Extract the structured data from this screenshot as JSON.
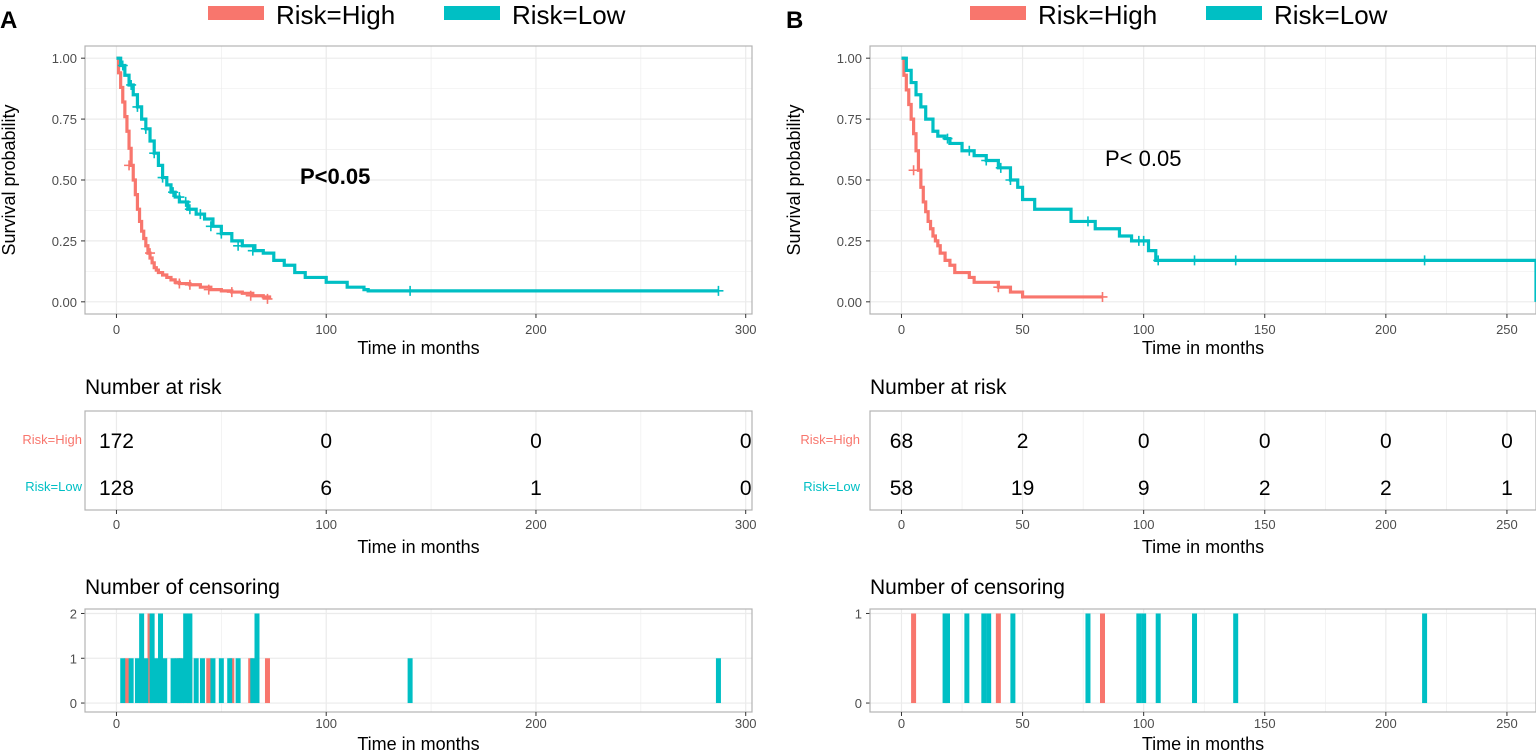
{
  "colors": {
    "high": "#F8766D",
    "low": "#00BFC4",
    "grid": "#EBEBEB",
    "border": "#B3B3B3",
    "text": "#000000",
    "tick": "#4D4D4D"
  },
  "chart_data": [
    {
      "panel_label": "A",
      "legend": {
        "high": "Risk=High",
        "low": "Risk=Low",
        "placement": "top"
      },
      "survival": {
        "type": "line",
        "step": true,
        "xlabel": "Time in months",
        "ylabel": "Survival probability",
        "xlim": [
          -15,
          303
        ],
        "ylim": [
          -0.05,
          1.05
        ],
        "xticks": [
          0,
          100,
          200,
          300
        ],
        "yticks": [
          0,
          0.25,
          0.5,
          0.75,
          1
        ],
        "ytick_labels": [
          "0.00",
          "0.25",
          "0.50",
          "0.75",
          "1.00"
        ],
        "pvalue": "P<0.05",
        "series": [
          {
            "name": "Risk=High",
            "color_key": "high",
            "x": [
              0,
              1,
              2,
              3,
              4,
              5,
              6,
              7,
              8,
              9,
              10,
              11,
              12,
              13,
              14,
              15,
              16,
              17,
              18,
              19,
              20,
              22,
              24,
              26,
              28,
              30,
              35,
              40,
              45,
              50,
              55,
              60,
              65,
              70,
              73
            ],
            "y": [
              1.0,
              0.94,
              0.88,
              0.82,
              0.76,
              0.7,
              0.63,
              0.56,
              0.5,
              0.44,
              0.38,
              0.33,
              0.29,
              0.26,
              0.23,
              0.2,
              0.18,
              0.16,
              0.14,
              0.13,
              0.12,
              0.11,
              0.1,
              0.09,
              0.08,
              0.075,
              0.07,
              0.06,
              0.05,
              0.045,
              0.04,
              0.035,
              0.025,
              0.02,
              0.012
            ],
            "censor_x": [
              6,
              16,
              30,
              35,
              44,
              55,
              64,
              72
            ],
            "censor_y": [
              0.56,
              0.2,
              0.075,
              0.07,
              0.05,
              0.04,
              0.025,
              0.012
            ]
          },
          {
            "name": "Risk=Low",
            "color_key": "low",
            "x": [
              0,
              2,
              4,
              6,
              8,
              10,
              12,
              14,
              16,
              18,
              20,
              22,
              24,
              26,
              28,
              30,
              34,
              38,
              42,
              46,
              50,
              55,
              60,
              66,
              70,
              75,
              80,
              85,
              90,
              100,
              110,
              118,
              120,
              140,
              200,
              287
            ],
            "y": [
              1.0,
              0.97,
              0.93,
              0.89,
              0.85,
              0.8,
              0.75,
              0.71,
              0.66,
              0.61,
              0.56,
              0.51,
              0.48,
              0.45,
              0.43,
              0.41,
              0.38,
              0.36,
              0.34,
              0.31,
              0.28,
              0.25,
              0.23,
              0.21,
              0.2,
              0.17,
              0.15,
              0.12,
              0.1,
              0.08,
              0.06,
              0.05,
              0.045,
              0.045,
              0.045,
              0.045
            ],
            "censor_x": [
              3,
              7,
              10,
              14,
              18,
              22,
              27,
              30,
              33,
              35,
              40,
              45,
              50,
              58,
              65,
              140,
              287
            ],
            "censor_y": [
              0.97,
              0.89,
              0.8,
              0.71,
              0.61,
              0.51,
              0.45,
              0.43,
              0.41,
              0.38,
              0.36,
              0.31,
              0.28,
              0.23,
              0.21,
              0.045,
              0.045
            ]
          }
        ]
      },
      "risk_table": {
        "title": "Number at risk",
        "xlabel": "Time in months",
        "xlim": [
          -15,
          303
        ],
        "xticks": [
          0,
          100,
          200,
          300
        ],
        "times": [
          0,
          100,
          200,
          300
        ],
        "rows": [
          {
            "label": "Risk=High",
            "color_key": "high",
            "values": [
              "172",
              "0",
              "0",
              "0"
            ]
          },
          {
            "label": "Risk=Low",
            "color_key": "low",
            "values": [
              "128",
              "6",
              "1",
              "0"
            ]
          }
        ]
      },
      "censoring": {
        "type": "bar",
        "title": "Number of censoring",
        "xlabel": "Time in months",
        "xlim": [
          -15,
          303
        ],
        "xticks": [
          0,
          100,
          200,
          300
        ],
        "ylim": [
          0,
          2
        ],
        "yticks": [
          0,
          1,
          2
        ],
        "series": [
          {
            "name": "Risk=High",
            "color_key": "high",
            "x": [
              5,
              16,
              30,
              35,
              44,
              55,
              64,
              72
            ],
            "values": [
              1,
              2,
              1,
              1,
              1,
              1,
              1,
              1
            ]
          },
          {
            "name": "Risk=Low",
            "color_key": "low",
            "x": [
              3,
              7,
              10,
              12,
              14,
              17,
              19,
              21,
              23,
              27,
              29,
              31,
              33,
              35,
              38,
              41,
              46,
              50,
              54,
              58,
              65,
              67,
              140,
              287
            ],
            "values": [
              1,
              1,
              1,
              2,
              1,
              2,
              1,
              2,
              1,
              1,
              1,
              1,
              2,
              2,
              1,
              1,
              1,
              1,
              1,
              1,
              1,
              2,
              1,
              1
            ]
          }
        ]
      }
    },
    {
      "panel_label": "B",
      "legend": {
        "high": "Risk=High",
        "low": "Risk=Low",
        "placement": "top"
      },
      "survival": {
        "type": "line",
        "step": true,
        "xlabel": "Time in months",
        "ylabel": "Survival probability",
        "xlim": [
          -13,
          262
        ],
        "ylim": [
          -0.05,
          1.05
        ],
        "xticks": [
          0,
          50,
          100,
          150,
          200,
          250
        ],
        "yticks": [
          0,
          0.25,
          0.5,
          0.75,
          1
        ],
        "ytick_labels": [
          "0.00",
          "0.25",
          "0.50",
          "0.75",
          "1.00"
        ],
        "pvalue": "P< 0.05",
        "series": [
          {
            "name": "Risk=High",
            "color_key": "high",
            "x": [
              0,
              1,
              2,
              3,
              4,
              5,
              6,
              7,
              8,
              9,
              10,
              11,
              12,
              13,
              14,
              15,
              16,
              18,
              20,
              22,
              25,
              28,
              30,
              35,
              40,
              45,
              50,
              83
            ],
            "y": [
              1.0,
              0.93,
              0.87,
              0.81,
              0.75,
              0.69,
              0.62,
              0.54,
              0.47,
              0.41,
              0.37,
              0.33,
              0.3,
              0.27,
              0.25,
              0.23,
              0.2,
              0.17,
              0.15,
              0.12,
              0.12,
              0.1,
              0.08,
              0.08,
              0.06,
              0.04,
              0.02,
              0.02
            ],
            "censor_x": [
              5,
              40,
              83
            ],
            "censor_y": [
              0.54,
              0.06,
              0.02
            ]
          },
          {
            "name": "Risk=Low",
            "color_key": "low",
            "x": [
              0,
              2,
              4,
              6,
              8,
              10,
              13,
              15,
              18,
              20,
              25,
              30,
              35,
              40,
              45,
              48,
              50,
              55,
              60,
              70,
              80,
              90,
              95,
              100,
              102,
              105,
              150,
              200,
              240,
              262
            ],
            "y": [
              1.0,
              0.95,
              0.9,
              0.85,
              0.8,
              0.75,
              0.7,
              0.68,
              0.67,
              0.65,
              0.62,
              0.6,
              0.58,
              0.55,
              0.5,
              0.47,
              0.42,
              0.38,
              0.38,
              0.33,
              0.3,
              0.27,
              0.25,
              0.25,
              0.21,
              0.17,
              0.17,
              0.17,
              0.17,
              0.0
            ],
            "censor_x": [
              19,
              28,
              35,
              41,
              45,
              77,
              98,
              100,
              106,
              121,
              138,
              216
            ],
            "censor_y": [
              0.67,
              0.62,
              0.58,
              0.55,
              0.5,
              0.33,
              0.25,
              0.25,
              0.17,
              0.17,
              0.17,
              0.17
            ]
          }
        ]
      },
      "risk_table": {
        "title": "Number at risk",
        "xlabel": "Time in months",
        "xlim": [
          -13,
          262
        ],
        "xticks": [
          0,
          50,
          100,
          150,
          200,
          250
        ],
        "times": [
          0,
          50,
          100,
          150,
          200,
          250
        ],
        "rows": [
          {
            "label": "Risk=High",
            "color_key": "high",
            "values": [
              "68",
              "2",
              "0",
              "0",
              "0",
              "0"
            ]
          },
          {
            "label": "Risk=Low",
            "color_key": "low",
            "values": [
              "58",
              "19",
              "9",
              "2",
              "2",
              "1"
            ]
          }
        ]
      },
      "censoring": {
        "type": "bar",
        "title": "Number of censoring",
        "xlabel": "Time in months",
        "xlim": [
          -13,
          262
        ],
        "xticks": [
          0,
          50,
          100,
          150,
          200,
          250
        ],
        "ylim": [
          0,
          1
        ],
        "yticks": [
          0,
          1
        ],
        "series": [
          {
            "name": "Risk=High",
            "color_key": "high",
            "x": [
              5,
              40,
              83
            ],
            "values": [
              1,
              1,
              1
            ]
          },
          {
            "name": "Risk=Low",
            "color_key": "low",
            "x": [
              18,
              19,
              27,
              34,
              36,
              46,
              77,
              98,
              100,
              106,
              121,
              138,
              216
            ],
            "values": [
              1,
              1,
              1,
              1,
              1,
              1,
              1,
              1,
              1,
              1,
              1,
              1,
              1
            ]
          }
        ]
      }
    }
  ]
}
